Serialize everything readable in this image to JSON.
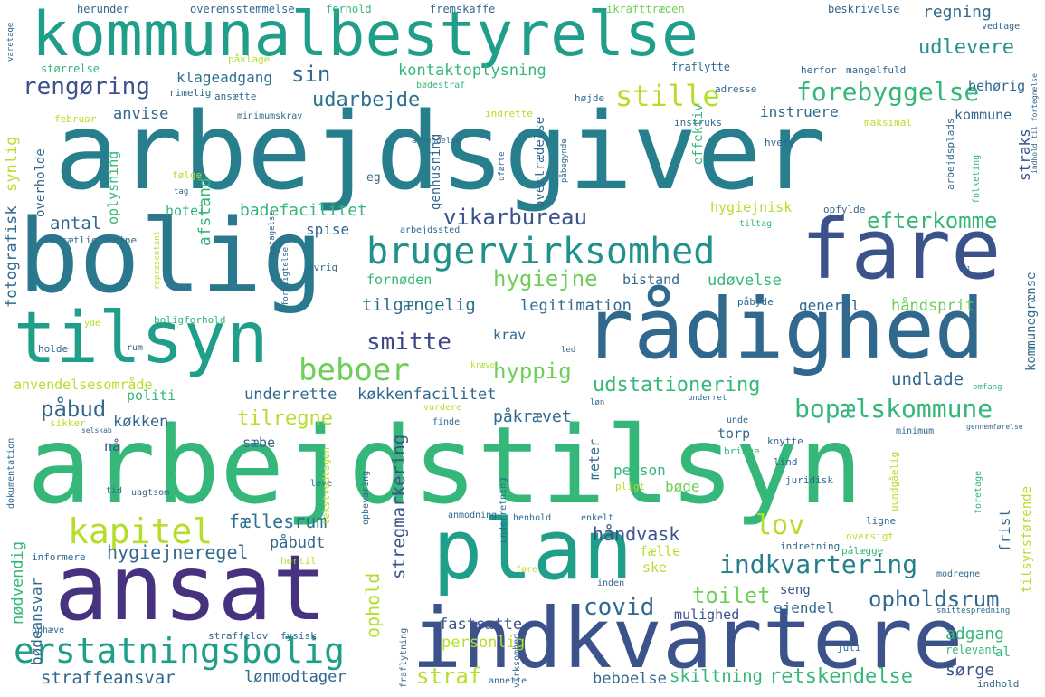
{
  "palette": {
    "dark_purple": "#46327e",
    "indigo": "#3b528b",
    "blue": "#365c8d",
    "teal_dark": "#277f8e",
    "teal": "#1f9e89",
    "green": "#35b779",
    "lime": "#6ece58",
    "yellow_green": "#b5de2b",
    "yellow": "#fde725",
    "purple": "#482878"
  },
  "words": [
    {
      "text": "arbejdsgiver",
      "color": "#277f8e"
    },
    {
      "text": "arbejdstilsyn",
      "color": "#35b779"
    },
    {
      "text": "kommunalbestyrelse",
      "color": "#1f9e89"
    },
    {
      "text": "bolig",
      "color": "#2a788e"
    },
    {
      "text": "fare",
      "color": "#3b528b"
    },
    {
      "text": "rådighed",
      "color": "#31688e"
    },
    {
      "text": "tilsyn",
      "color": "#1f9e89"
    },
    {
      "text": "ansat",
      "color": "#46327e"
    },
    {
      "text": "plan",
      "color": "#1f9e89"
    },
    {
      "text": "indkvartere",
      "color": "#3b528b"
    },
    {
      "text": "brugervirksomhed",
      "color": "#21918c"
    },
    {
      "text": "erstatningsbolig",
      "color": "#1f9e89"
    },
    {
      "text": "kapitel",
      "color": "#b5de2b"
    },
    {
      "text": "beboer",
      "color": "#6ece58"
    },
    {
      "text": "forebyggelse",
      "color": "#35b779"
    },
    {
      "text": "stille",
      "color": "#b5de2b"
    },
    {
      "text": "indkvartering",
      "color": "#277f8e"
    },
    {
      "text": "bopælskommune",
      "color": "#35b779"
    },
    {
      "text": "udstationering",
      "color": "#35b779"
    },
    {
      "text": "opholdsrum",
      "color": "#31688e"
    },
    {
      "text": "vikarbureau",
      "color": "#3b528b"
    },
    {
      "text": "efterkomme",
      "color": "#35b779"
    },
    {
      "text": "smitte",
      "color": "#3e4989"
    },
    {
      "text": "hyppig",
      "color": "#6ece58"
    },
    {
      "text": "lov",
      "color": "#b5de2b"
    },
    {
      "text": "covid",
      "color": "#31688e"
    },
    {
      "text": "toilet",
      "color": "#6ece58"
    },
    {
      "text": "hygiejne",
      "color": "#6ece58"
    },
    {
      "text": "retskendelse",
      "color": "#35b779"
    },
    {
      "text": "straf",
      "color": "#b5de2b"
    },
    {
      "text": "udarbejde",
      "color": "#2c728e"
    },
    {
      "text": "rengøring",
      "color": "#3b528b"
    },
    {
      "text": "sin",
      "color": "#31688e"
    },
    {
      "text": "udlevere",
      "color": "#21918c"
    },
    {
      "text": "regning",
      "color": "#31688e"
    },
    {
      "text": "kontaktoplysning",
      "color": "#35b779"
    },
    {
      "text": "klageadgang",
      "color": "#2c728e"
    },
    {
      "text": "anvise",
      "color": "#31688e"
    },
    {
      "text": "badefacilitet",
      "color": "#35b779"
    },
    {
      "text": "antal",
      "color": "#31688e"
    },
    {
      "text": "hygiejnisk",
      "color": "#b5de2b"
    },
    {
      "text": "tilgængelig",
      "color": "#2c728e"
    },
    {
      "text": "legitimation",
      "color": "#31688e"
    },
    {
      "text": "udøvelse",
      "color": "#35b779"
    },
    {
      "text": "tilregne",
      "color": "#b5de2b"
    },
    {
      "text": "køkkenfacilitet",
      "color": "#31688e"
    },
    {
      "text": "påbud",
      "color": "#31688e"
    },
    {
      "text": "hygiejneregel",
      "color": "#31688e"
    },
    {
      "text": "fællesrum",
      "color": "#2c728e"
    },
    {
      "text": "håndvask",
      "color": "#3b528b"
    },
    {
      "text": "påkrævet",
      "color": "#31688e"
    },
    {
      "text": "underrette",
      "color": "#31688e"
    },
    {
      "text": "straffeansvar",
      "color": "#31688e"
    },
    {
      "text": "lønmodtager",
      "color": "#31688e"
    },
    {
      "text": "beboelse",
      "color": "#31688e"
    },
    {
      "text": "skiltning",
      "color": "#35b779"
    },
    {
      "text": "adgang",
      "color": "#35b779"
    },
    {
      "text": "sørge",
      "color": "#3b528b"
    },
    {
      "text": "undlade",
      "color": "#31688e"
    },
    {
      "text": "fastsætte",
      "color": "#3b528b"
    },
    {
      "text": "personlig",
      "color": "#b5de2b"
    },
    {
      "text": "mulighed",
      "color": "#3b528b"
    },
    {
      "text": "ejendel",
      "color": "#31688e"
    },
    {
      "text": "seng",
      "color": "#3b528b"
    },
    {
      "text": "ske",
      "color": "#b5de2b"
    },
    {
      "text": "fælle",
      "color": "#b5de2b"
    },
    {
      "text": "påbudt",
      "color": "#31688e"
    },
    {
      "text": "person",
      "color": "#35b779"
    },
    {
      "text": "bøde",
      "color": "#6ece58"
    },
    {
      "text": "torp",
      "color": "#31688e"
    },
    {
      "text": "køkken",
      "color": "#31688e"
    },
    {
      "text": "politi",
      "color": "#35b779"
    },
    {
      "text": "anvendelsesområde",
      "color": "#b5de2b"
    },
    {
      "text": "spise",
      "color": "#31688e"
    },
    {
      "text": "hotel",
      "color": "#35b779"
    },
    {
      "text": "fornøden",
      "color": "#35b779"
    },
    {
      "text": "bistand",
      "color": "#31688e"
    },
    {
      "text": "generel",
      "color": "#31688e"
    },
    {
      "text": "håndsprit",
      "color": "#6ece58"
    },
    {
      "text": "instruere",
      "color": "#31688e"
    },
    {
      "text": "kommune",
      "color": "#31688e"
    },
    {
      "text": "behørig",
      "color": "#31688e"
    },
    {
      "text": "krav",
      "color": "#31688e"
    },
    {
      "text": "sæbe",
      "color": "#31688e"
    },
    {
      "text": "nå",
      "color": "#3b528b"
    },
    {
      "text": "herunder",
      "color": "#31688e"
    },
    {
      "text": "overensstemmelse",
      "color": "#31688e"
    },
    {
      "text": "forhold",
      "color": "#35b779"
    },
    {
      "text": "fremskaffe",
      "color": "#31688e"
    },
    {
      "text": "ikrafttræden",
      "color": "#6ece58"
    },
    {
      "text": "beskrivelse",
      "color": "#31688e"
    },
    {
      "text": "vedtage",
      "color": "#31688e"
    },
    {
      "text": "størrelse",
      "color": "#35b779"
    },
    {
      "text": "påklage",
      "color": "#b5de2b"
    },
    {
      "text": "fraflytte",
      "color": "#31688e"
    },
    {
      "text": "herfor",
      "color": "#31688e"
    },
    {
      "text": "mangelfuld",
      "color": "#31688e"
    },
    {
      "text": "rimelig",
      "color": "#31688e"
    },
    {
      "text": "ansætte",
      "color": "#31688e"
    },
    {
      "text": "bødestraf",
      "color": "#35b779"
    },
    {
      "text": "højde",
      "color": "#31688e"
    },
    {
      "text": "adresse",
      "color": "#31688e"
    },
    {
      "text": "februar",
      "color": "#b5de2b"
    },
    {
      "text": "minimumskrav",
      "color": "#31688e"
    },
    {
      "text": "indrette",
      "color": "#b5de2b"
    },
    {
      "text": "instruks",
      "color": "#31688e"
    },
    {
      "text": "maksimal",
      "color": "#b5de2b"
    },
    {
      "text": "hverv",
      "color": "#31688e"
    },
    {
      "text": "eg",
      "color": "#31688e"
    },
    {
      "text": "anvendelse",
      "color": "#31688e"
    },
    {
      "text": "følge",
      "color": "#b5de2b"
    },
    {
      "text": "tag",
      "color": "#31688e"
    },
    {
      "text": "opfylde",
      "color": "#31688e"
    },
    {
      "text": "tiltag",
      "color": "#35b779"
    },
    {
      "text": "arbejdssted",
      "color": "#31688e"
    },
    {
      "text": "forsætlig",
      "color": "#31688e"
    },
    {
      "text": "trine",
      "color": "#31688e"
    },
    {
      "text": "øvrig",
      "color": "#31688e"
    },
    {
      "text": "påbyde",
      "color": "#31688e"
    },
    {
      "text": "el",
      "color": "#31688e"
    },
    {
      "text": "boligforhold",
      "color": "#35b779"
    },
    {
      "text": "yde",
      "color": "#b5de2b"
    },
    {
      "text": "holde",
      "color": "#31688e"
    },
    {
      "text": "rum",
      "color": "#31688e"
    },
    {
      "text": "led",
      "color": "#31688e"
    },
    {
      "text": "mod",
      "color": "#31688e"
    },
    {
      "text": "kræve",
      "color": "#b5de2b"
    },
    {
      "text": "løn",
      "color": "#31688e"
    },
    {
      "text": "underret",
      "color": "#31688e"
    },
    {
      "text": "omfang",
      "color": "#35b779"
    },
    {
      "text": "sikker",
      "color": "#b5de2b"
    },
    {
      "text": "selskab",
      "color": "#31688e"
    },
    {
      "text": "vurdere",
      "color": "#b5de2b"
    },
    {
      "text": "finde",
      "color": "#31688e"
    },
    {
      "text": "unde",
      "color": "#31688e"
    },
    {
      "text": "bringe",
      "color": "#35b779"
    },
    {
      "text": "minimum",
      "color": "#31688e"
    },
    {
      "text": "gennemførelse",
      "color": "#31688e"
    },
    {
      "text": "knytte",
      "color": "#31688e"
    },
    {
      "text": "lind",
      "color": "#31688e"
    },
    {
      "text": "juridisk",
      "color": "#31688e"
    },
    {
      "text": "tid",
      "color": "#31688e"
    },
    {
      "text": "uagtsom",
      "color": "#31688e"
    },
    {
      "text": "leve",
      "color": "#31688e"
    },
    {
      "text": "pligt",
      "color": "#b5de2b"
    },
    {
      "text": "anmodning",
      "color": "#31688e"
    },
    {
      "text": "henhold",
      "color": "#31688e"
    },
    {
      "text": "enkelt",
      "color": "#31688e"
    },
    {
      "text": "ligne",
      "color": "#31688e"
    },
    {
      "text": "oversigt",
      "color": "#b5de2b"
    },
    {
      "text": "pålægge",
      "color": "#35b779"
    },
    {
      "text": "indretning",
      "color": "#31688e"
    },
    {
      "text": "informere",
      "color": "#31688e"
    },
    {
      "text": "hertil",
      "color": "#b5de2b"
    },
    {
      "text": "føre",
      "color": "#b5de2b"
    },
    {
      "text": "inden",
      "color": "#31688e"
    },
    {
      "text": "modregne",
      "color": "#31688e"
    },
    {
      "text": "smittespredning",
      "color": "#31688e"
    },
    {
      "text": "ophæve",
      "color": "#31688e"
    },
    {
      "text": "straffelov",
      "color": "#31688e"
    },
    {
      "text": "fysisk",
      "color": "#31688e"
    },
    {
      "text": "juli",
      "color": "#31688e"
    },
    {
      "text": "relevant",
      "color": "#35b779"
    },
    {
      "text": "al",
      "color": "#35b779"
    },
    {
      "text": "annette",
      "color": "#31688e"
    },
    {
      "text": "indhold",
      "color": "#31688e"
    },
    {
      "text": "nødvendig",
      "color": "#35b779"
    },
    {
      "text": "bødeansvar",
      "color": "#31688e"
    },
    {
      "text": "dokumentation",
      "color": "#31688e"
    },
    {
      "text": "fotografisk",
      "color": "#31688e"
    },
    {
      "text": "synlig",
      "color": "#b5de2b"
    },
    {
      "text": "overholde",
      "color": "#31688e"
    },
    {
      "text": "oplysning",
      "color": "#35b779"
    },
    {
      "text": "afstand",
      "color": "#35b779"
    },
    {
      "text": "genhusning",
      "color": "#31688e"
    },
    {
      "text": "overtrædelse",
      "color": "#31688e"
    },
    {
      "text": "effektiv",
      "color": "#35b779"
    },
    {
      "text": "straks",
      "color": "#3b528b"
    },
    {
      "text": "arbejdsplads",
      "color": "#31688e"
    },
    {
      "text": "folketing",
      "color": "#35b779"
    },
    {
      "text": "kommunegrænse",
      "color": "#31688e"
    },
    {
      "text": "stregmarkering",
      "color": "#3b528b"
    },
    {
      "text": "ophold",
      "color": "#b5de2b"
    },
    {
      "text": "meter",
      "color": "#31688e"
    },
    {
      "text": "frist",
      "color": "#31688e"
    },
    {
      "text": "tilsynsførende",
      "color": "#b5de2b"
    },
    {
      "text": "tekstvedtagen",
      "color": "#b5de2b"
    },
    {
      "text": "opbevaring",
      "color": "#31688e"
    },
    {
      "text": "underretning",
      "color": "#31688e"
    },
    {
      "text": "fraflytning",
      "color": "#31688e"
    },
    {
      "text": "virksomhed",
      "color": "#31688e"
    },
    {
      "text": "uundgåelig",
      "color": "#b5de2b"
    },
    {
      "text": "foretage",
      "color": "#35b779"
    },
    {
      "text": "uførte",
      "color": "#31688e"
    },
    {
      "text": "påbegynde",
      "color": "#31688e"
    },
    {
      "text": "repræsentant",
      "color": "#b5de2b"
    },
    {
      "text": "optagelse",
      "color": "#31688e"
    },
    {
      "text": "forpligtelse",
      "color": "#31688e"
    },
    {
      "text": "varetage",
      "color": "#31688e"
    },
    {
      "text": "indhold til fortegnelse",
      "color": "#31688e"
    }
  ]
}
